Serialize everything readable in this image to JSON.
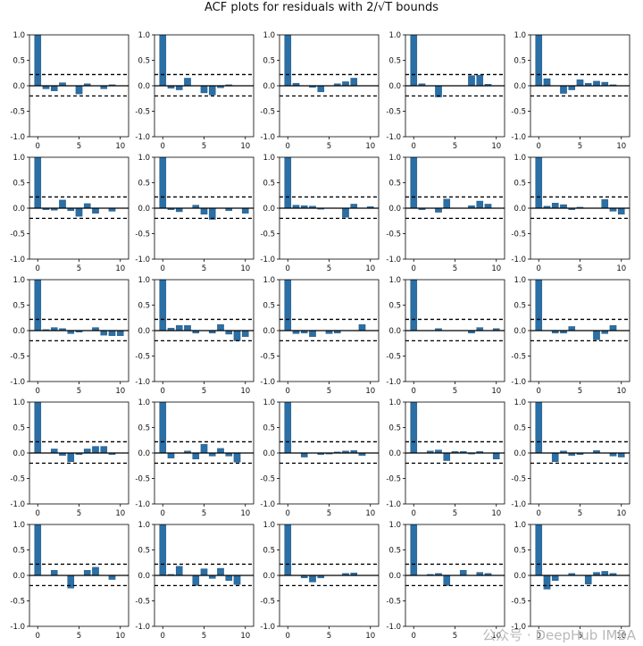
{
  "title_prefix": "ACF plots for residuals with 2/",
  "title_symbol": "√T",
  "title_suffix": " bounds",
  "watermark": "公众号 · DeepHub IMBA",
  "colors": {
    "bar": "#2a6fa6",
    "axis": "#000000"
  },
  "chart_data": {
    "type": "bar",
    "layout": {
      "rows": 5,
      "cols": 5
    },
    "x": [
      0,
      1,
      2,
      3,
      4,
      5,
      6,
      7,
      8,
      9,
      10
    ],
    "x_ticks": [
      "0",
      "5",
      "10"
    ],
    "y_ticks": [
      "1.0",
      "0.5",
      "0.0",
      "-0.5",
      "-1.0"
    ],
    "ylim": [
      -1.0,
      1.0
    ],
    "bounds": [
      0.22,
      -0.2
    ],
    "grid": false,
    "panels": [
      [
        1,
        -0.06,
        -0.1,
        0.06,
        0,
        -0.16,
        0.04,
        0,
        -0.06,
        0.02,
        0
      ],
      [
        1,
        -0.05,
        -0.08,
        0.15,
        0,
        -0.14,
        -0.18,
        -0.04,
        0.02,
        0,
        0
      ],
      [
        1,
        0.05,
        0,
        -0.03,
        -0.12,
        0,
        0.04,
        0.08,
        0.15,
        0,
        0
      ],
      [
        1,
        0.04,
        0,
        -0.22,
        0,
        0,
        0,
        0.2,
        0.21,
        0.03,
        0
      ],
      [
        1,
        0.14,
        0,
        -0.15,
        -0.08,
        0.12,
        0.05,
        0.09,
        0.07,
        0.02,
        0
      ],
      [
        1,
        -0.03,
        -0.04,
        0.16,
        -0.05,
        -0.16,
        0.09,
        -0.1,
        0,
        -0.06,
        0
      ],
      [
        1,
        -0.03,
        -0.07,
        0,
        0.06,
        -0.12,
        -0.22,
        0,
        -0.05,
        0,
        -0.1
      ],
      [
        1,
        0.06,
        0.05,
        0.04,
        -0.02,
        0,
        0,
        -0.18,
        0.08,
        0,
        0.03
      ],
      [
        1,
        -0.03,
        0,
        -0.08,
        0.18,
        0,
        0,
        0.05,
        0.14,
        0.08,
        0
      ],
      [
        1,
        0.04,
        0.1,
        0.07,
        -0.03,
        0.02,
        0,
        0,
        0.17,
        -0.06,
        -0.12
      ],
      [
        1,
        0.02,
        0.06,
        0.04,
        -0.06,
        -0.03,
        0,
        0.06,
        -0.09,
        -0.1,
        -0.1
      ],
      [
        1,
        0.05,
        0.1,
        0.1,
        -0.05,
        0,
        -0.05,
        0.12,
        -0.07,
        -0.2,
        -0.12
      ],
      [
        1,
        -0.06,
        -0.05,
        -0.12,
        0,
        -0.06,
        -0.05,
        0,
        0,
        0.12,
        0
      ],
      [
        1,
        0,
        0,
        0.04,
        0,
        0,
        0,
        -0.05,
        0.06,
        0,
        0.04
      ],
      [
        1,
        0,
        -0.05,
        -0.05,
        0.08,
        0,
        0,
        -0.18,
        -0.06,
        0.1,
        0
      ],
      [
        1,
        0,
        0.08,
        -0.05,
        -0.17,
        -0.03,
        0.08,
        0.13,
        0.13,
        -0.03,
        0
      ],
      [
        1,
        -0.1,
        0,
        0.04,
        -0.12,
        0.17,
        -0.06,
        0.09,
        -0.06,
        -0.18,
        0
      ],
      [
        1,
        0,
        -0.08,
        0,
        -0.03,
        -0.02,
        0.02,
        0.04,
        0.05,
        -0.05,
        0
      ],
      [
        1,
        0,
        0.04,
        0.06,
        -0.15,
        0.03,
        0.03,
        -0.02,
        0.03,
        0,
        -0.12
      ],
      [
        1,
        0,
        -0.17,
        0.04,
        -0.05,
        -0.03,
        0,
        0.05,
        0,
        -0.06,
        -0.08
      ],
      [
        1,
        0,
        0.1,
        0,
        -0.25,
        0,
        0.1,
        0.16,
        0,
        -0.08,
        0
      ],
      [
        1,
        0.02,
        0.18,
        0,
        -0.2,
        0.13,
        -0.06,
        0.14,
        -0.1,
        -0.18,
        0
      ],
      [
        1,
        0,
        -0.05,
        -0.13,
        -0.05,
        0,
        0,
        0.04,
        0.05,
        0,
        0
      ],
      [
        1,
        0,
        0.02,
        0.04,
        -0.2,
        0,
        0.1,
        0,
        0.06,
        0.04,
        0
      ],
      [
        1,
        -0.27,
        -0.1,
        0,
        0.04,
        0,
        -0.17,
        0.06,
        0.08,
        0.04,
        0
      ]
    ]
  }
}
